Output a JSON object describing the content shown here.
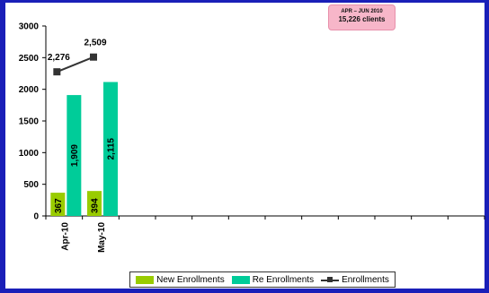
{
  "badge": {
    "line1": "APR – JUN 2010",
    "line2": "15,226 clients"
  },
  "chart_data": {
    "type": "bar",
    "categories": [
      "Apr-10",
      "May-10"
    ],
    "ylim": [
      0,
      3000
    ],
    "yticks": [
      "0",
      "500",
      "1000",
      "1500",
      "2000",
      "2500",
      "3000"
    ],
    "series": [
      {
        "name": "New Enrollments",
        "values": [
          367,
          394
        ],
        "labels": [
          "367",
          "394"
        ],
        "color": "#99cc00"
      },
      {
        "name": "Re Enrollments",
        "values": [
          1909,
          2115
        ],
        "labels": [
          "1,909",
          "2,115"
        ],
        "color": "#00cc99"
      },
      {
        "name": "Enrollments",
        "type": "line",
        "values": [
          2276,
          2509
        ],
        "labels": [
          "2,276",
          "2,509"
        ],
        "color": "#333333"
      }
    ],
    "grid": false,
    "legend_position": "bottom"
  },
  "legend": {
    "new_label": "New Enrollments",
    "re_label": "Re Enrollments",
    "total_label": "Enrollments"
  }
}
